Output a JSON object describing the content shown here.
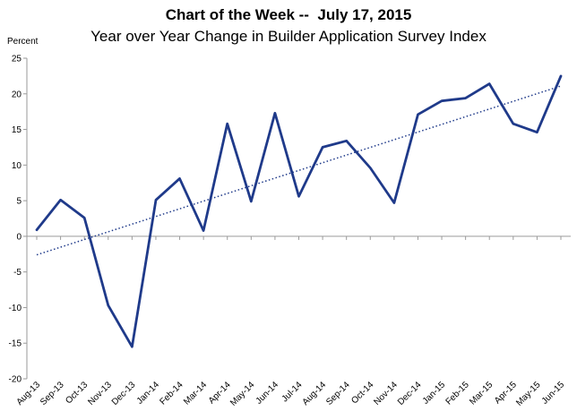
{
  "chart_data": {
    "type": "line",
    "title": "Chart of the Week --  July 17, 2015",
    "subtitle": "Year over Year Change in Builder Application Survey Index",
    "ylabel": "Percent",
    "xlabel": "",
    "ylim": [
      -20,
      25
    ],
    "yticks": [
      25,
      20,
      15,
      10,
      5,
      0,
      -5,
      -10,
      -15,
      -20
    ],
    "grid": false,
    "legend": "none",
    "categories": [
      "Aug-13",
      "Sep-13",
      "Oct-13",
      "Nov-13",
      "Dec-13",
      "Jan-14",
      "Feb-14",
      "Mar-14",
      "Apr-14",
      "May-14",
      "Jun-14",
      "Jul-14",
      "Aug-14",
      "Sep-14",
      "Oct-14",
      "Nov-14",
      "Dec-14",
      "Jan-15",
      "Feb-15",
      "Mar-15",
      "Apr-15",
      "May-15",
      "Jun-15"
    ],
    "series": [
      {
        "values": [
          0.9,
          5.1,
          2.6,
          -9.7,
          -15.5,
          5.1,
          8.1,
          0.8,
          15.8,
          4.9,
          17.3,
          5.6,
          12.5,
          13.4,
          9.6,
          4.7,
          17.1,
          19.0,
          19.4,
          21.4,
          15.8,
          14.6,
          22.5
        ],
        "color": "#1F3A8A",
        "trendline": {
          "type": "linear",
          "style": "dotted",
          "color": "#1F3A8A",
          "start": -2.6,
          "end": 21.1
        }
      }
    ]
  }
}
